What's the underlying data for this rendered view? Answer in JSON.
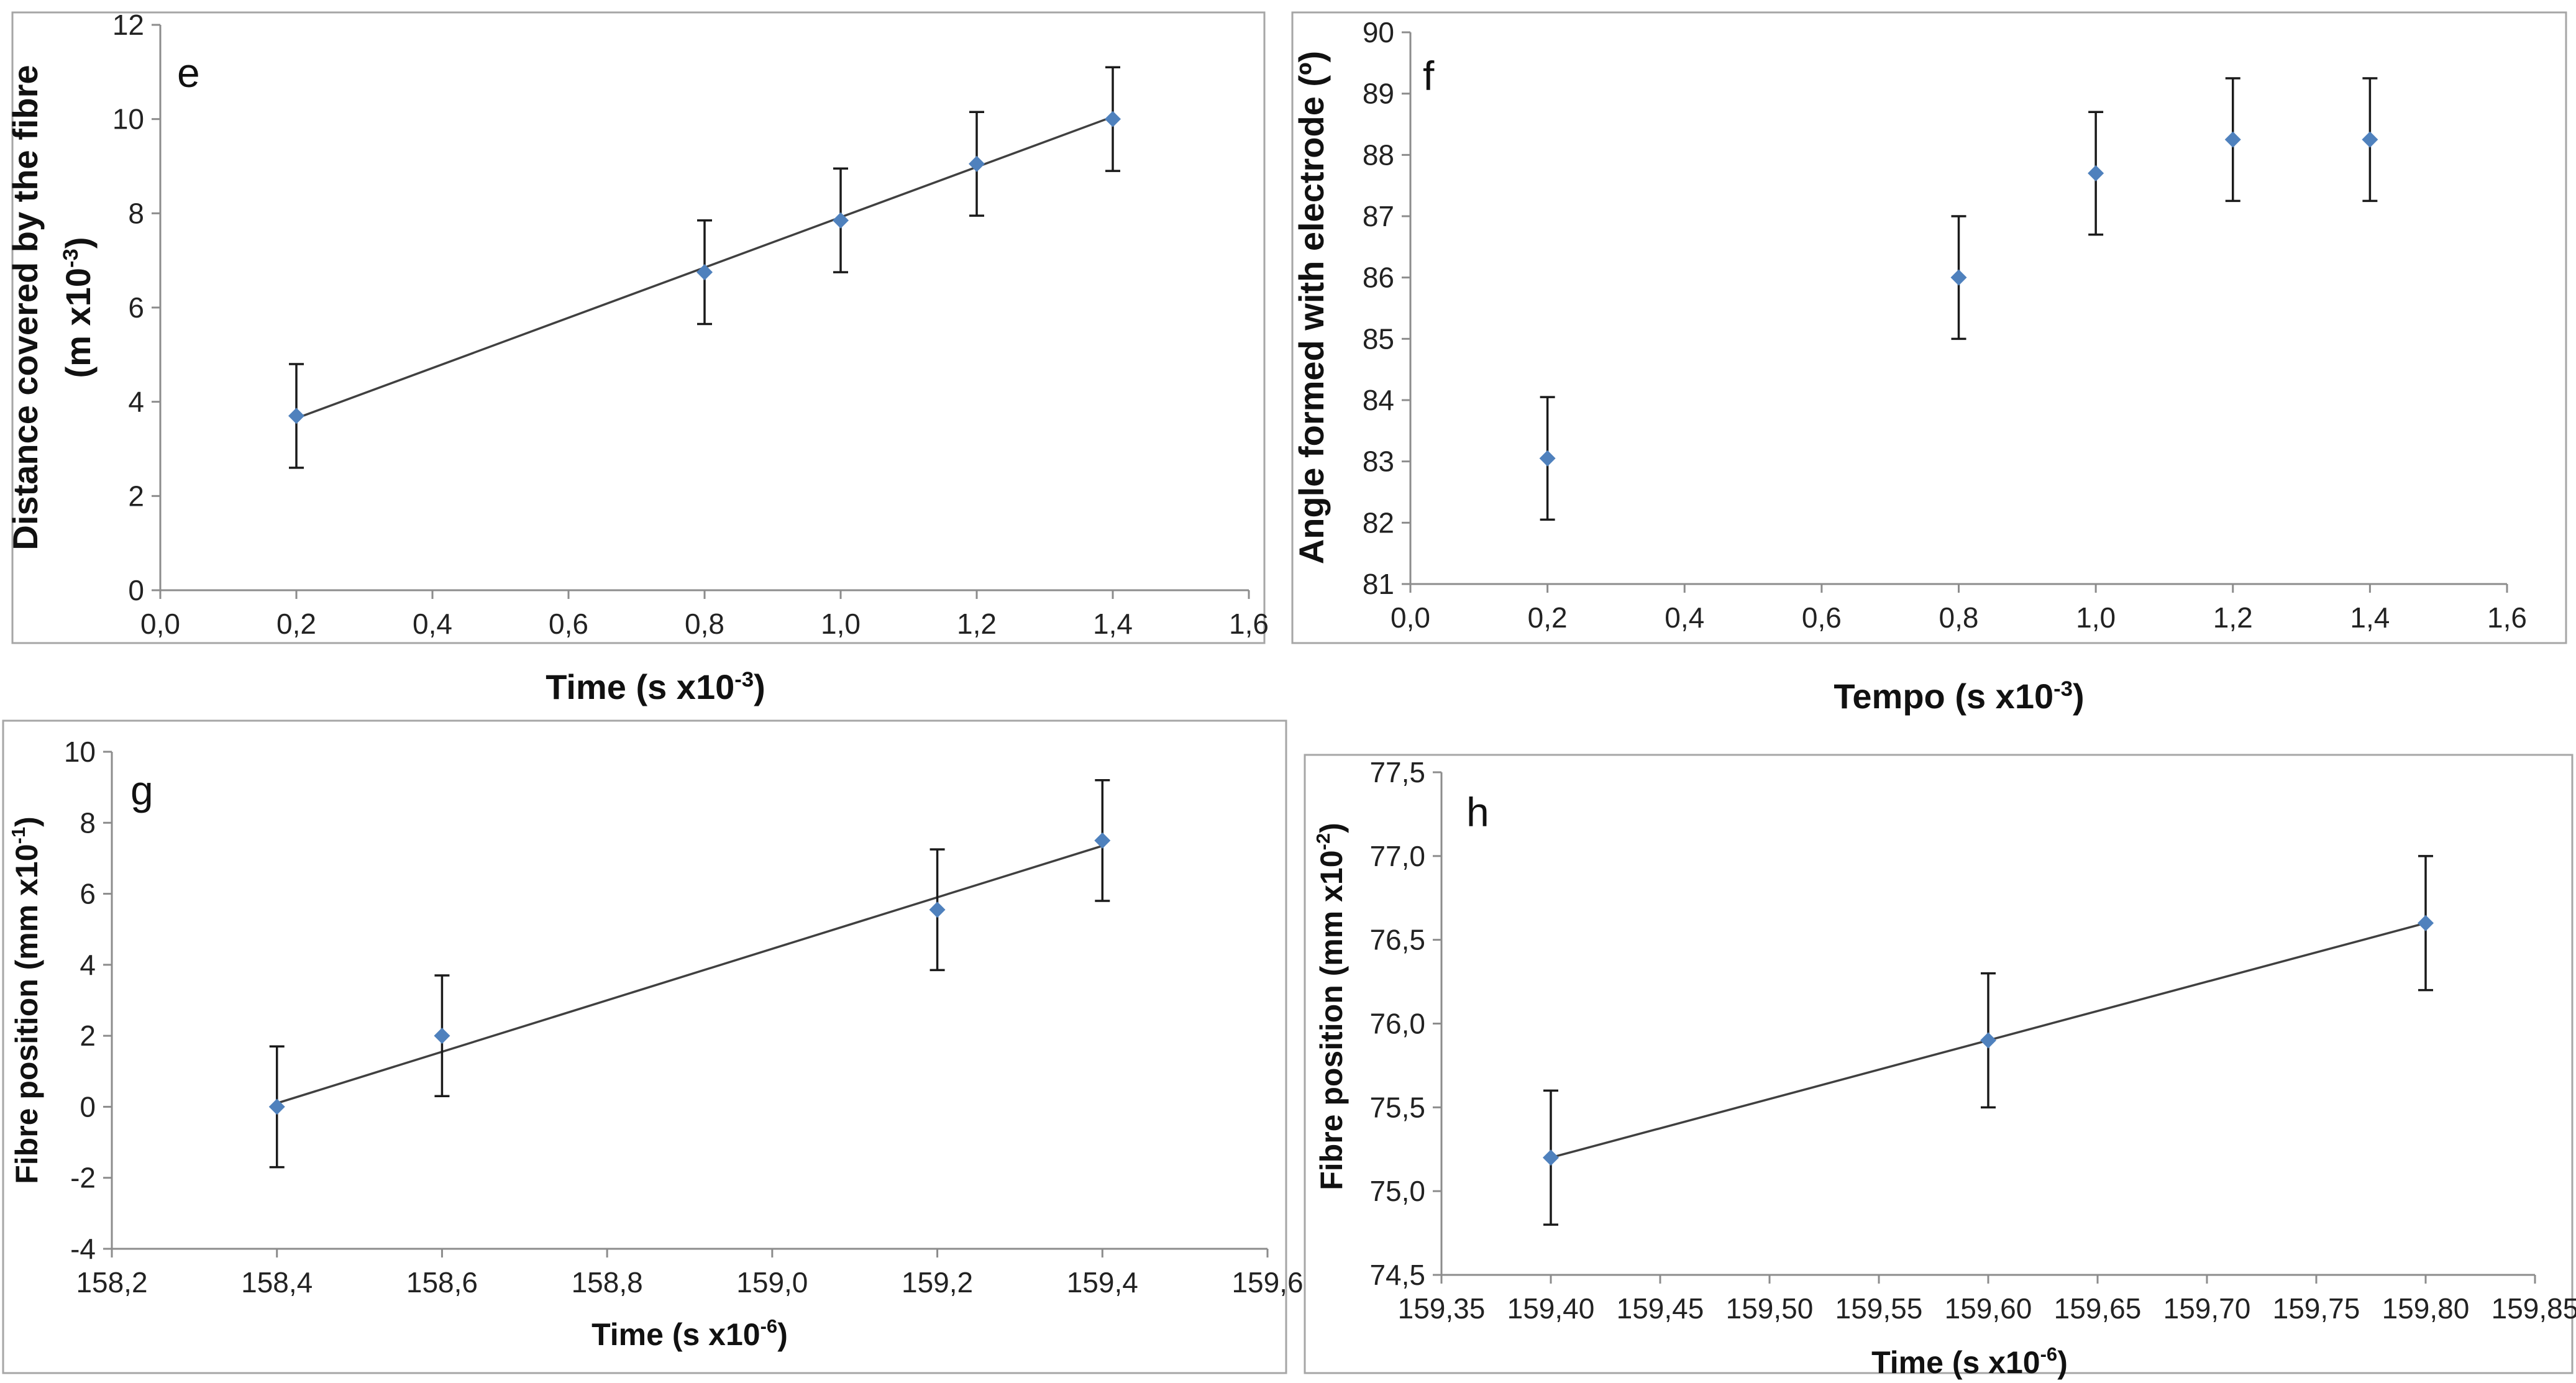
{
  "chart_data": [
    {
      "id": "e",
      "type": "scatter",
      "panel_label": "e",
      "xlabel": "Time (s x10",
      "xlabel_sup": "-3",
      "xlabel_end": ")",
      "ylabel_line1": "Distance covered by the fibre",
      "ylabel_line2": "(m x10",
      "ylabel_sup": "-3",
      "ylabel_end": ")",
      "xlim": [
        0,
        1.6
      ],
      "ylim": [
        0,
        12
      ],
      "xticks": [
        0,
        0.2,
        0.4,
        0.6,
        0.8,
        1.0,
        1.2,
        1.4,
        1.6
      ],
      "xtick_labels": [
        "0,0",
        "0,2",
        "0,4",
        "0,6",
        "0,8",
        "1,0",
        "1,2",
        "1,4",
        "1,6"
      ],
      "yticks": [
        0,
        2,
        4,
        6,
        8,
        10,
        12
      ],
      "ytick_labels": [
        "0",
        "2",
        "4",
        "6",
        "8",
        "10",
        "12"
      ],
      "x": [
        0.2,
        0.8,
        1.0,
        1.2,
        1.4
      ],
      "y": [
        3.7,
        6.75,
        7.85,
        9.05,
        10.0
      ],
      "error": 1.1,
      "trendline": [
        [
          0.2,
          3.65
        ],
        [
          1.4,
          10.05
        ]
      ]
    },
    {
      "id": "f",
      "type": "scatter",
      "panel_label": "f",
      "xlabel": "Tempo  (s x10",
      "xlabel_sup": "-3",
      "xlabel_end": ")",
      "ylabel_line1": "Angle formed with electrode (º)",
      "ylabel_line2": "",
      "ylabel_sup": "",
      "ylabel_end": "",
      "xlim": [
        0,
        1.6
      ],
      "ylim": [
        81,
        90
      ],
      "xticks": [
        0,
        0.2,
        0.4,
        0.6,
        0.8,
        1.0,
        1.2,
        1.4,
        1.6
      ],
      "xtick_labels": [
        "0,0",
        "0,2",
        "0,4",
        "0,6",
        "0,8",
        "1,0",
        "1,2",
        "1,4",
        "1,6"
      ],
      "yticks": [
        81,
        82,
        83,
        84,
        85,
        86,
        87,
        88,
        89,
        90
      ],
      "ytick_labels": [
        "81",
        "82",
        "83",
        "84",
        "85",
        "86",
        "87",
        "88",
        "89",
        "90"
      ],
      "x": [
        0.2,
        0.8,
        1.0,
        1.2,
        1.4
      ],
      "y": [
        83.05,
        86.0,
        87.7,
        88.25,
        88.25
      ],
      "error": 1.0,
      "trendline": null
    },
    {
      "id": "g",
      "type": "scatter",
      "panel_label": "g",
      "xlabel": "Time (s x10",
      "xlabel_sup": "-6",
      "xlabel_end": ")",
      "ylabel_line1": "Fibre position (mm x10",
      "ylabel_line2": "",
      "ylabel_sup": "-1",
      "ylabel_end": ")",
      "xlim": [
        158.2,
        159.6
      ],
      "ylim": [
        -4,
        10
      ],
      "xticks": [
        158.2,
        158.4,
        158.6,
        158.8,
        159.0,
        159.2,
        159.4,
        159.6
      ],
      "xtick_labels": [
        "158,2",
        "158,4",
        "158,6",
        "158,8",
        "159,0",
        "159,2",
        "159,4",
        "159,6"
      ],
      "yticks": [
        -4,
        -2,
        0,
        2,
        4,
        6,
        8,
        10
      ],
      "ytick_labels": [
        "-4",
        "-2",
        "0",
        "2",
        "4",
        "6",
        "8",
        "10"
      ],
      "x": [
        158.4,
        158.6,
        159.2,
        159.4
      ],
      "y": [
        0.0,
        2.0,
        5.55,
        7.5
      ],
      "error": 1.7,
      "trendline": [
        [
          158.4,
          0.1
        ],
        [
          159.4,
          7.35
        ]
      ]
    },
    {
      "id": "h",
      "type": "scatter",
      "panel_label": "h",
      "xlabel": "Time (s x10",
      "xlabel_sup": "-6",
      "xlabel_end": ")",
      "ylabel_line1": "Fibre position (mm x10",
      "ylabel_line2": "",
      "ylabel_sup": "-2",
      "ylabel_end": ")",
      "xlim": [
        159.35,
        159.85
      ],
      "ylim": [
        74.5,
        77.5
      ],
      "xticks": [
        159.35,
        159.4,
        159.45,
        159.5,
        159.55,
        159.6,
        159.65,
        159.7,
        159.75,
        159.8,
        159.85
      ],
      "xtick_labels": [
        "159,35",
        "159,40",
        "159,45",
        "159,50",
        "159,55",
        "159,60",
        "159,65",
        "159,70",
        "159,75",
        "159,80",
        "159,85"
      ],
      "yticks": [
        74.5,
        75.0,
        75.5,
        76.0,
        76.5,
        77.0,
        77.5
      ],
      "ytick_labels": [
        "74,5",
        "75,0",
        "75,5",
        "76,0",
        "76,5",
        "77,0",
        "77,5"
      ],
      "x": [
        159.4,
        159.6,
        159.8
      ],
      "y": [
        75.2,
        75.9,
        76.6
      ],
      "error": 0.4,
      "trendline": [
        [
          159.4,
          75.2
        ],
        [
          159.8,
          76.6
        ]
      ]
    }
  ]
}
